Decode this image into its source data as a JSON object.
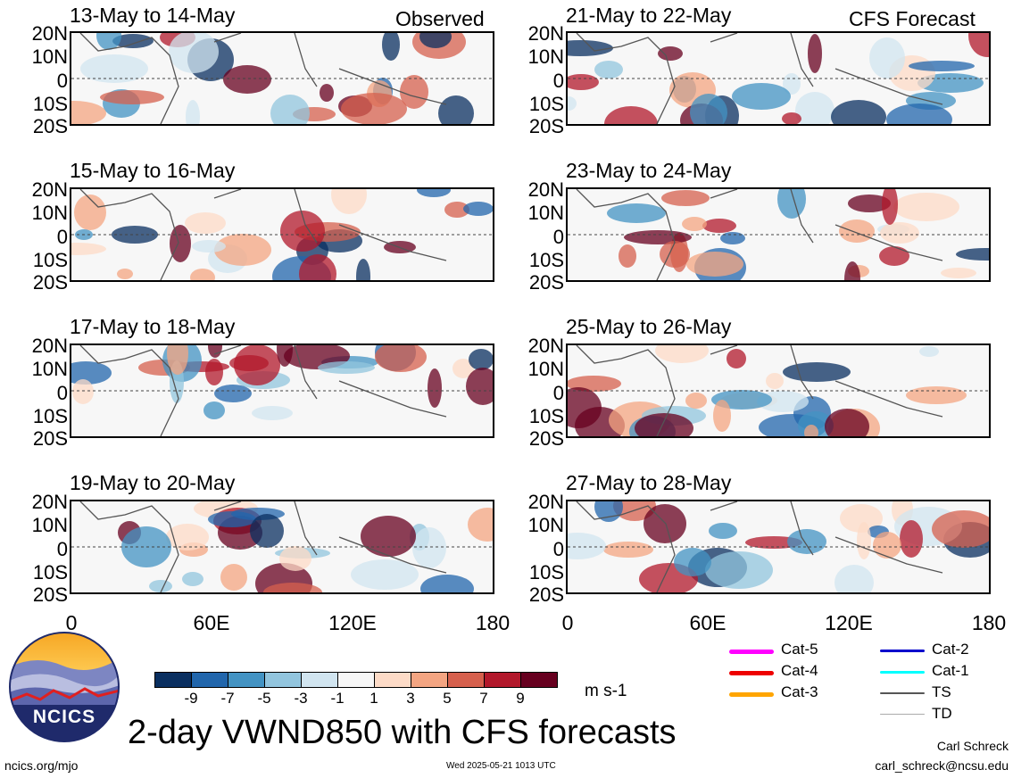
{
  "observed_label": "Observed",
  "forecast_label": "CFS Forecast",
  "panels": [
    {
      "title": "13-May to 14-May"
    },
    {
      "title": "15-May to 16-May"
    },
    {
      "title": "17-May to 18-May"
    },
    {
      "title": "19-May to 20-May"
    },
    {
      "title": "21-May to 22-May"
    },
    {
      "title": "23-May to 24-May"
    },
    {
      "title": "25-May to 26-May"
    },
    {
      "title": "27-May to 28-May"
    }
  ],
  "lat_labels": [
    "20N",
    "10N",
    "0",
    "10S",
    "20S"
  ],
  "lon_labels": [
    "0",
    "60E",
    "120E",
    "180"
  ],
  "colorbar": {
    "labels": [
      "-9",
      "-7",
      "-5",
      "-3",
      "-1",
      "1",
      "3",
      "5",
      "7",
      "9"
    ],
    "colors": [
      "#0a2f60",
      "#2166ac",
      "#4393c3",
      "#92c5de",
      "#d1e5f0",
      "#f7f7f7",
      "#fddbc7",
      "#f4a582",
      "#d6604d",
      "#b2182b",
      "#67001f"
    ],
    "units": "m s-1"
  },
  "legend": [
    {
      "label": "Cat-5",
      "color": "#ff00ff"
    },
    {
      "label": "Cat-4",
      "color": "#ee0000"
    },
    {
      "label": "Cat-3",
      "color": "#ffa500"
    },
    {
      "label": "Cat-2",
      "color": "#0000cc"
    },
    {
      "label": "Cat-1",
      "color": "#00ffff"
    },
    {
      "label": "TS",
      "color": "#555555"
    },
    {
      "label": "TD",
      "color": "#aaaaaa"
    }
  ],
  "logo_text": "NCICS",
  "main_title": "2-day VWND850 with CFS forecasts",
  "url": "ncics.org/mjo",
  "timestamp": "Wed 2025-05-21 1013 UTC",
  "author": "Carl Schreck",
  "email": "carl_schreck@ncsu.edu"
}
